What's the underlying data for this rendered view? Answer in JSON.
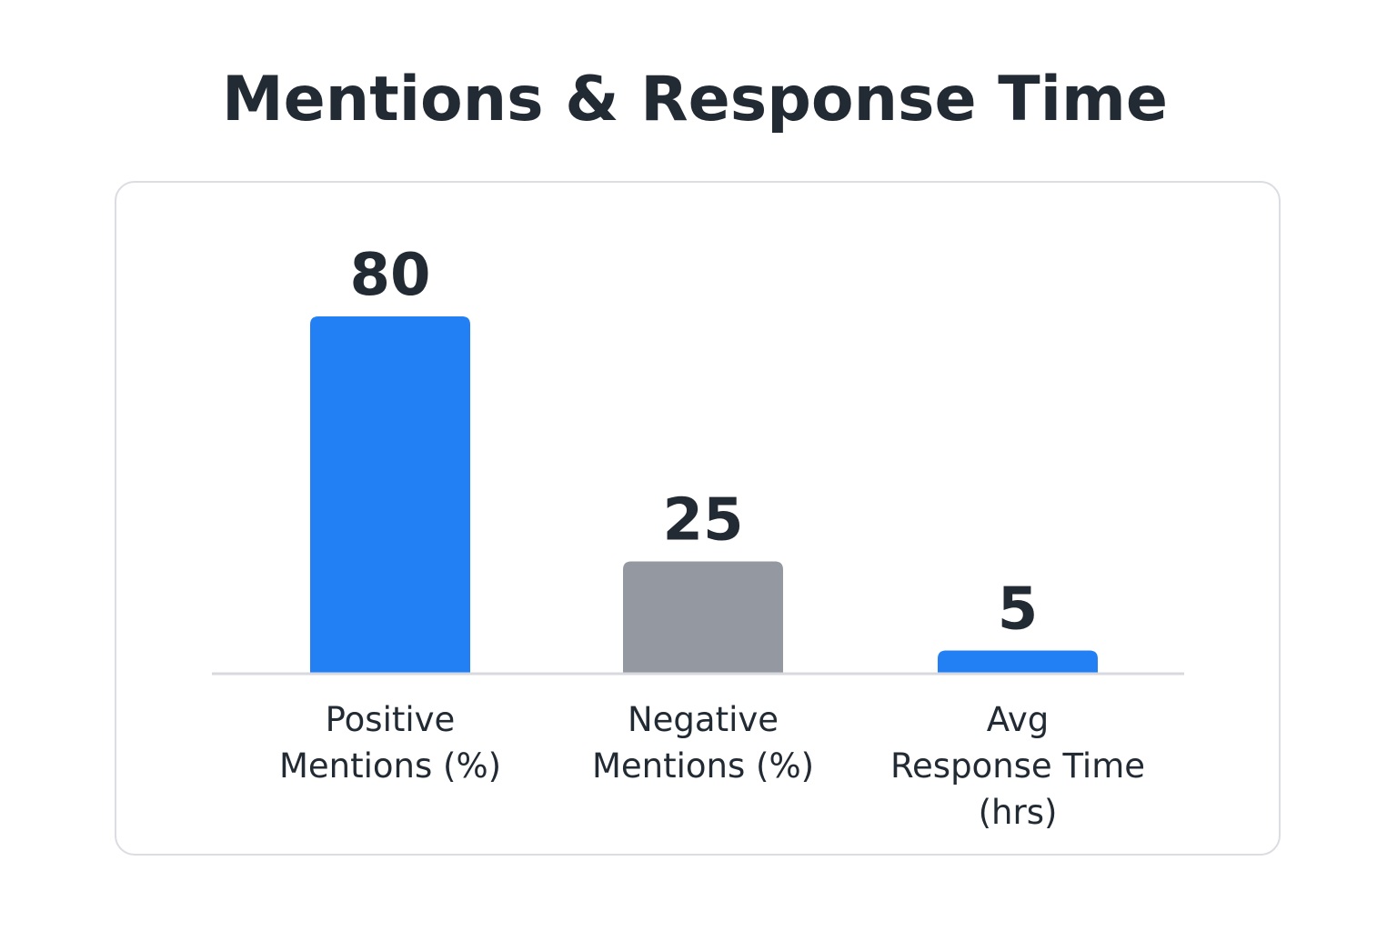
{
  "chart_data": {
    "type": "bar",
    "title": "Mentions & Response Time",
    "categories": [
      [
        "Positive",
        "Mentions (%)"
      ],
      [
        "Negative",
        "Mentions (%)"
      ],
      [
        "Avg",
        "Response Time",
        "(hrs)"
      ]
    ],
    "values": [
      80,
      25,
      5
    ],
    "colors": [
      "#2380f4",
      "#9498a1",
      "#2380f4"
    ],
    "ylim": [
      0,
      80
    ],
    "xlabel": "",
    "ylabel": "",
    "grid": false,
    "legend": "none",
    "data_labels": [
      "80",
      "25",
      "5"
    ]
  }
}
